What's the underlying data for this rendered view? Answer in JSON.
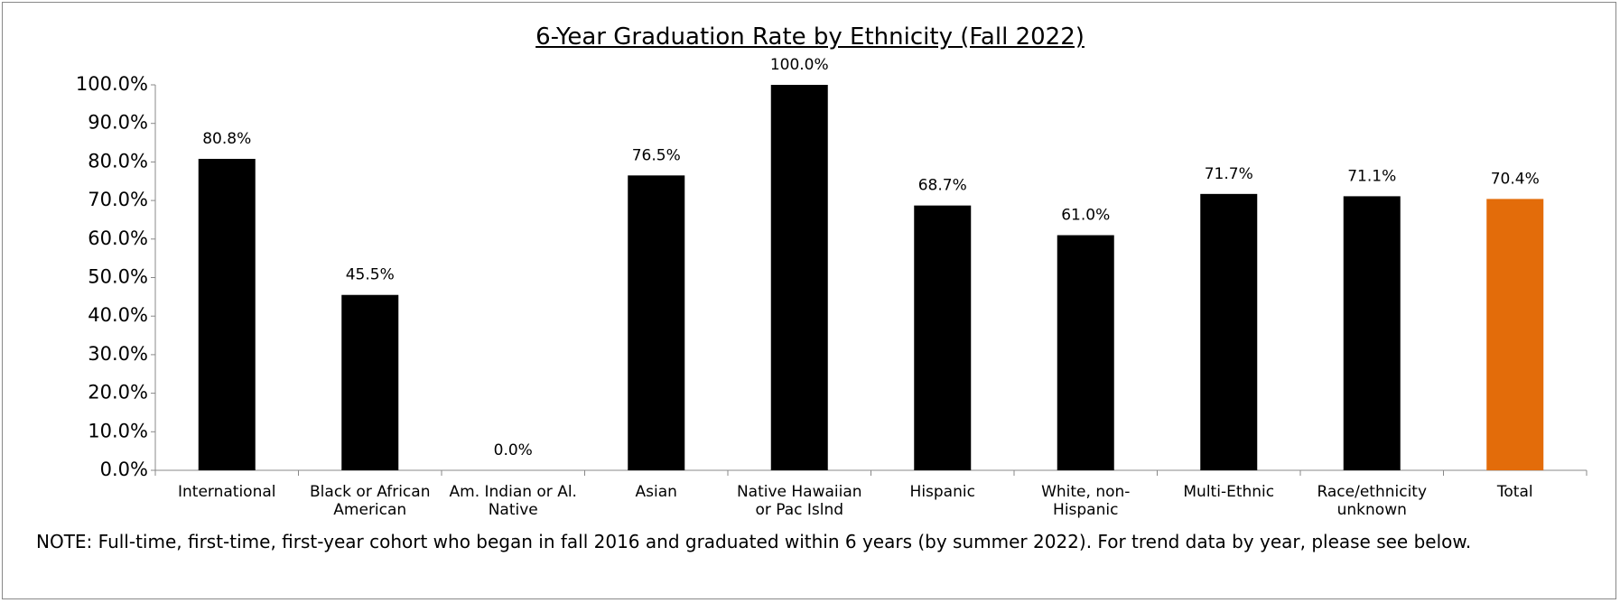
{
  "chart_data": {
    "type": "bar",
    "title": "6-Year Graduation Rate by Ethnicity (Fall 2022)",
    "categories": [
      "International",
      "Black or African American",
      "Am. Indian or Al. Native",
      "Asian",
      "Native Hawaiian or Pac Islnd",
      "Hispanic",
      "White, non-Hispanic",
      "Multi-Ethnic",
      "Race/ethnicity unknown",
      "Total"
    ],
    "values": [
      80.8,
      45.5,
      0.0,
      76.5,
      100.0,
      68.7,
      61.0,
      71.7,
      71.1,
      70.4
    ],
    "value_labels": [
      "80.8%",
      "45.5%",
      "0.0%",
      "76.5%",
      "100.0%",
      "68.7%",
      "61.0%",
      "71.7%",
      "71.1%",
      "70.4%"
    ],
    "colors": [
      "#000000",
      "#000000",
      "#000000",
      "#000000",
      "#000000",
      "#000000",
      "#000000",
      "#000000",
      "#000000",
      "#e36c0a"
    ],
    "ylim": [
      0,
      100
    ],
    "yticks": [
      {
        "value": 0,
        "label": "0.0%"
      },
      {
        "value": 10,
        "label": "10.0%"
      },
      {
        "value": 20,
        "label": "20.0%"
      },
      {
        "value": 30,
        "label": "30.0%"
      },
      {
        "value": 40,
        "label": "40.0%"
      },
      {
        "value": 50,
        "label": "50.0%"
      },
      {
        "value": 60,
        "label": "60.0%"
      },
      {
        "value": 70,
        "label": "70.0%"
      },
      {
        "value": 80,
        "label": "80.0%"
      },
      {
        "value": 90,
        "label": "90.0%"
      },
      {
        "value": 100,
        "label": "100.0%"
      }
    ],
    "grid": false,
    "note": "NOTE: Full-time, first-time, first-year cohort who began in fall 2016 and graduated within 6 years (by summer 2022). For trend data by year, please see below."
  }
}
